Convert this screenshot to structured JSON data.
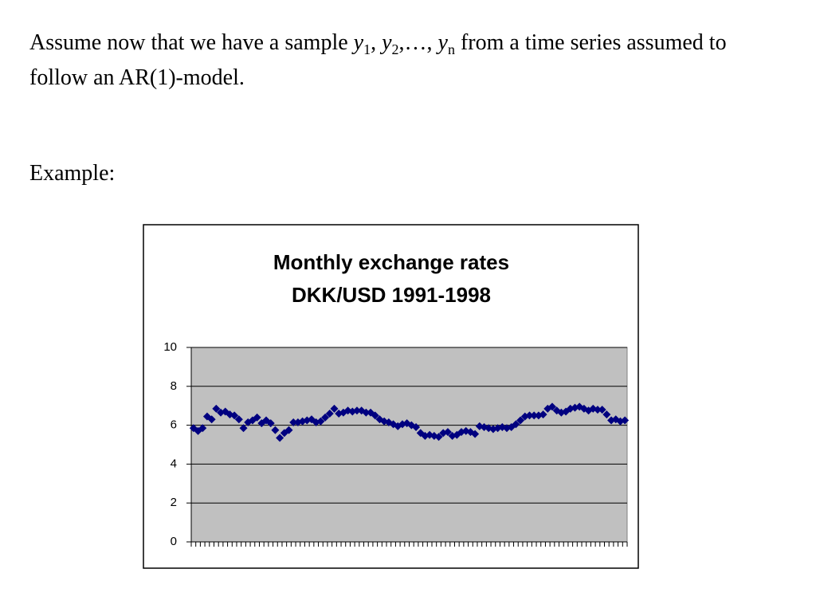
{
  "text": {
    "intro": [
      "Assume now that we have a sample ",
      "y",
      "1",
      ", ",
      "y",
      "2",
      ",…, ",
      "y",
      "n",
      " from a time series assumed to follow an AR(1)-model."
    ],
    "example": "Example:"
  },
  "chart_data": {
    "type": "line",
    "title": "Monthly exchange rates",
    "subtitle": "DKK/USD 1991-1998",
    "categories": [
      null,
      null,
      null,
      null,
      null,
      null,
      null,
      null,
      null,
      null,
      null,
      null,
      null,
      null,
      null,
      null,
      null,
      null,
      null,
      null,
      null,
      null,
      null,
      null,
      null,
      null,
      null,
      null,
      null,
      null,
      null,
      null,
      null,
      null,
      null,
      null,
      null,
      null,
      null,
      null,
      null,
      null,
      null,
      null,
      null,
      null,
      null,
      null,
      null,
      null,
      null,
      null,
      null,
      null,
      null,
      null,
      null,
      null,
      null,
      null,
      null,
      null,
      null,
      null,
      null,
      null,
      null,
      null,
      null,
      null,
      null,
      null,
      null,
      null,
      null,
      null,
      null,
      null,
      null,
      null,
      null,
      null,
      null,
      null,
      null,
      null,
      null,
      null,
      null,
      null,
      null,
      null,
      null,
      null,
      null,
      null
    ],
    "series": [
      {
        "color": "#000080",
        "marker": "diamond",
        "values": [
          5.85,
          5.7,
          5.85,
          6.45,
          6.3,
          6.85,
          6.65,
          6.7,
          6.55,
          6.5,
          6.3,
          5.85,
          6.15,
          6.25,
          6.4,
          6.1,
          6.25,
          6.1,
          5.75,
          5.35,
          5.6,
          5.75,
          6.15,
          6.15,
          6.2,
          6.25,
          6.3,
          6.15,
          6.2,
          6.4,
          6.6,
          6.85,
          6.6,
          6.65,
          6.75,
          6.7,
          6.75,
          6.75,
          6.65,
          6.65,
          6.5,
          6.3,
          6.2,
          6.15,
          6.05,
          5.95,
          6.05,
          6.1,
          6.0,
          5.9,
          5.6,
          5.45,
          5.5,
          5.45,
          5.4,
          5.6,
          5.65,
          5.45,
          5.5,
          5.65,
          5.7,
          5.65,
          5.55,
          5.95,
          5.9,
          5.85,
          5.8,
          5.85,
          5.9,
          5.85,
          5.9,
          6.05,
          6.25,
          6.45,
          6.5,
          6.5,
          6.5,
          6.55,
          6.85,
          6.95,
          6.75,
          6.65,
          6.7,
          6.85,
          6.9,
          6.95,
          6.85,
          6.75,
          6.85,
          6.8,
          6.8,
          6.55,
          6.25,
          6.3,
          6.2,
          6.25
        ]
      }
    ],
    "ylim": [
      0,
      10
    ],
    "yticks": [
      0,
      2,
      4,
      6,
      8,
      10
    ],
    "grid": true,
    "plot_background": "#c0c0c0"
  }
}
